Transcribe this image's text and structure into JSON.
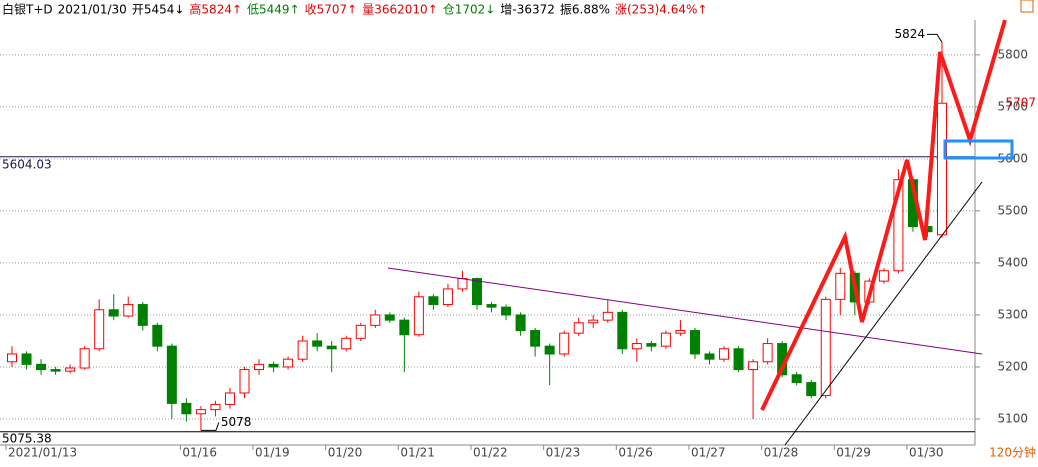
{
  "header": {
    "items": [
      "白银T+D",
      "2021/01/30",
      "开5454↓",
      "高5824↑",
      "低5449↑",
      "收5707↑",
      "量3662010↑",
      "仓1702↓",
      "增-36372",
      "振6.88%",
      "涨(253)4.64%↑"
    ]
  },
  "period": "120分钟",
  "chart_data": {
    "type": "candlestick",
    "categories": [
      "2021/01/13",
      null,
      null,
      null,
      null,
      null,
      null,
      null,
      null,
      null,
      null,
      null,
      "01/16",
      null,
      null,
      null,
      null,
      "01/19",
      null,
      null,
      null,
      null,
      "01/20",
      null,
      null,
      null,
      null,
      "01/21",
      null,
      null,
      null,
      null,
      "01/22",
      null,
      null,
      null,
      null,
      "01/23",
      null,
      null,
      null,
      null,
      "01/26",
      null,
      null,
      null,
      null,
      "01/27",
      null,
      null,
      null,
      null,
      "01/28",
      null,
      null,
      null,
      null,
      "01/29",
      null,
      null,
      null,
      null,
      "01/30",
      null,
      null
    ],
    "open": [
      5210,
      5225,
      5205,
      5195,
      5192,
      5198,
      5235,
      5310,
      5298,
      5320,
      5280,
      5240,
      5130,
      5110,
      5118,
      5128,
      5150,
      5195,
      5205,
      5200,
      5215,
      5250,
      5240,
      5235,
      5255,
      5280,
      5300,
      5290,
      5262,
      5335,
      5320,
      5350,
      5370,
      5320,
      5315,
      5300,
      5270,
      5240,
      5225,
      5265,
      5285,
      5290,
      5305,
      5235,
      5245,
      5240,
      5265,
      5270,
      5225,
      5215,
      5235,
      5195,
      5210,
      5245,
      5185,
      5170,
      5145,
      5330,
      5380,
      5325,
      5365,
      5385,
      5560,
      5470,
      5454
    ],
    "high": [
      5240,
      5230,
      5215,
      5200,
      5205,
      5240,
      5330,
      5340,
      5335,
      5325,
      5285,
      5245,
      5140,
      5125,
      5135,
      5160,
      5200,
      5215,
      5210,
      5220,
      5260,
      5265,
      5250,
      5260,
      5285,
      5310,
      5305,
      5295,
      5345,
      5340,
      5360,
      5385,
      5372,
      5325,
      5320,
      5305,
      5275,
      5245,
      5270,
      5295,
      5300,
      5330,
      5310,
      5255,
      5250,
      5270,
      5290,
      5275,
      5230,
      5240,
      5240,
      5215,
      5255,
      5250,
      5190,
      5175,
      5335,
      5390,
      5385,
      5370,
      5390,
      5580,
      5565,
      5500,
      5824
    ],
    "low": [
      5200,
      5195,
      5185,
      5185,
      5188,
      5195,
      5230,
      5290,
      5295,
      5270,
      5230,
      5100,
      5095,
      5078,
      5105,
      5120,
      5140,
      5185,
      5190,
      5195,
      5210,
      5230,
      5190,
      5230,
      5250,
      5275,
      5285,
      5190,
      5258,
      5310,
      5315,
      5345,
      5310,
      5305,
      5290,
      5260,
      5220,
      5165,
      5220,
      5260,
      5275,
      5285,
      5225,
      5210,
      5230,
      5235,
      5260,
      5215,
      5205,
      5210,
      5190,
      5100,
      5205,
      5180,
      5165,
      5140,
      5140,
      5300,
      5300,
      5320,
      5360,
      5380,
      5460,
      5450,
      5449
    ],
    "close": [
      5225,
      5205,
      5195,
      5192,
      5198,
      5235,
      5310,
      5298,
      5320,
      5280,
      5240,
      5130,
      5110,
      5118,
      5128,
      5150,
      5195,
      5205,
      5200,
      5215,
      5250,
      5240,
      5235,
      5255,
      5280,
      5300,
      5290,
      5262,
      5335,
      5320,
      5350,
      5370,
      5320,
      5315,
      5300,
      5270,
      5240,
      5225,
      5265,
      5285,
      5290,
      5305,
      5235,
      5245,
      5240,
      5265,
      5270,
      5225,
      5215,
      5235,
      5195,
      5210,
      5245,
      5185,
      5170,
      5145,
      5330,
      5380,
      5325,
      5365,
      5385,
      5560,
      5470,
      5460,
      5707
    ],
    "up_color": "#ff0000",
    "down_color": "#008000",
    "ref_lines": [
      5604.03,
      5075.38
    ],
    "ylim": [
      5050,
      5867
    ],
    "yticks": [
      5100,
      5200,
      5300,
      5400,
      5500,
      5600,
      5700,
      5800
    ],
    "grid": true
  }
}
